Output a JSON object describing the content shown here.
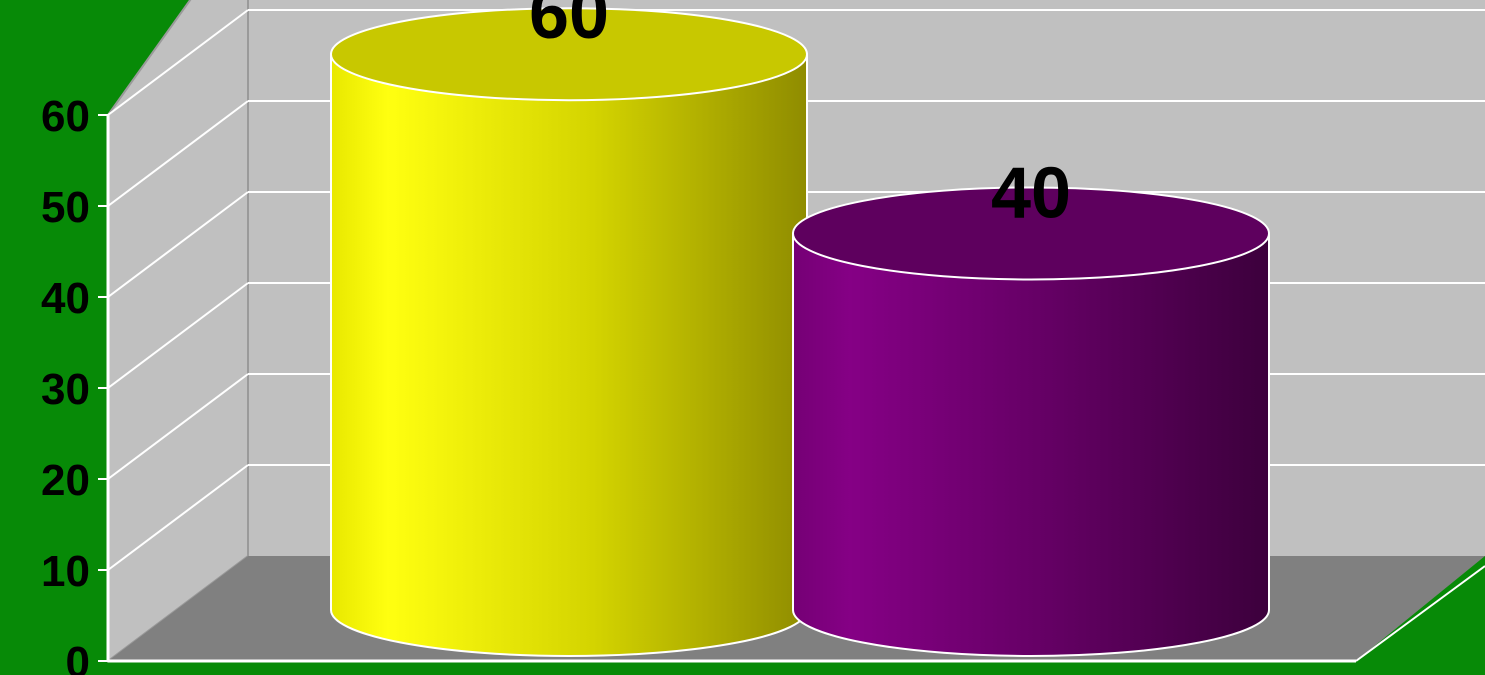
{
  "chart_data": {
    "type": "bar",
    "style": "3d-cylinder",
    "categories": [
      "",
      ""
    ],
    "series": [
      {
        "values": [
          60,
          40
        ]
      }
    ],
    "data_labels": [
      "60",
      "40"
    ],
    "bar_colors": [
      "#f5f500",
      "#7a007a"
    ],
    "ylim": [
      0,
      60
    ],
    "y_ticks": [
      "0",
      "10",
      "20",
      "30",
      "40",
      "50",
      "60"
    ],
    "title": "",
    "xlabel": "",
    "ylabel": "",
    "grid": true,
    "legend": false
  },
  "colors": {
    "background": "#078a07",
    "wall": "#c0c0c0",
    "floor": "#808080",
    "gridline": "#ffffff"
  }
}
